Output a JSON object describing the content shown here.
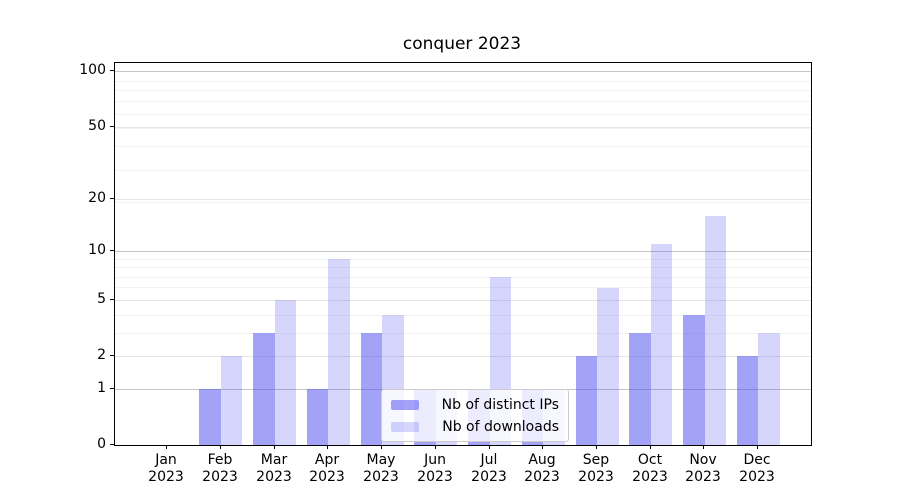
{
  "chart_data": {
    "type": "bar",
    "title": "conquer 2023",
    "categories": [
      "Jan\n2023",
      "Feb\n2023",
      "Mar\n2023",
      "Apr\n2023",
      "May\n2023",
      "Jun\n2023",
      "Jul\n2023",
      "Aug\n2023",
      "Sep\n2023",
      "Oct\n2023",
      "Nov\n2023",
      "Dec\n2023"
    ],
    "series": [
      {
        "name": "Nb of distinct IPs",
        "color": "#4646F080",
        "values": [
          0,
          1,
          3,
          1,
          3,
          1,
          1,
          1,
          2,
          3,
          4,
          2
        ]
      },
      {
        "name": "Nb of downloads",
        "color": "#4646F038",
        "values": [
          0,
          2,
          5,
          9,
          4,
          1,
          7,
          1,
          6,
          11,
          16,
          3
        ]
      }
    ],
    "y_axis": {
      "scale": "log1p",
      "ticks": [
        0,
        1,
        2,
        5,
        10,
        20,
        50,
        100
      ],
      "max": 111
    },
    "x_axis": {
      "label_lines": 2
    },
    "grid": {
      "major_values": [
        1,
        10,
        100
      ],
      "mid_values": [
        2,
        5,
        20,
        50
      ],
      "minor_values": [
        3,
        4,
        6,
        7,
        8,
        9,
        19,
        29,
        39,
        49,
        59,
        69,
        79,
        89
      ],
      "major_color": "#c6c6c6",
      "mid_color": "#e6e6e6",
      "minor_color": "#f2f2f2"
    },
    "legend": {
      "position": "lower-center"
    }
  }
}
